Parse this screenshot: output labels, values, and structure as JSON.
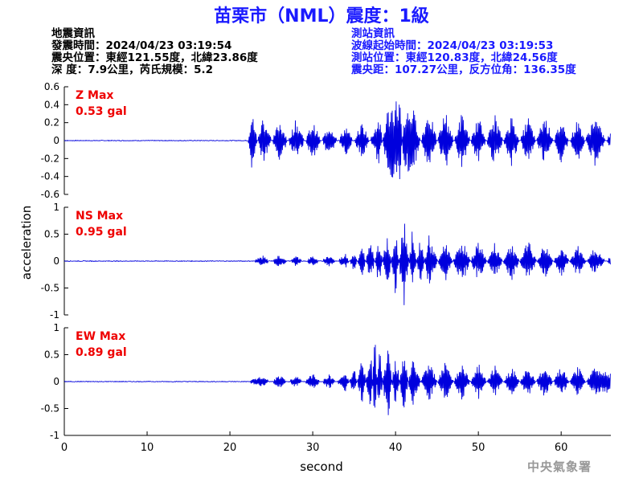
{
  "title": "苗栗市（NML）震度：1級",
  "quake_info": {
    "heading": "地震資訊",
    "origin_time": "發震時間：2024/04/23 03:19:54",
    "epicenter": "震央位置：東經121.55度，北緯23.86度",
    "depth_magnitude": "深  度：7.9公里，芮氏規模：5.2"
  },
  "station_info": {
    "heading": "測站資訊",
    "wave_start": "波線起始時間：2024/04/23 03:19:53",
    "location": "測站位置：東經120.83度，北緯24.56度",
    "distance": "震央距：107.27公里，反方位角：136.35度"
  },
  "agency": "中央氣象署",
  "colors": {
    "trace": "#0000dd",
    "title": "#1a1aff",
    "max_label": "#ee0000",
    "station_text": "#1a1aff"
  },
  "chart_data": {
    "type": "line",
    "xlabel": "second",
    "ylabel": "acceleration",
    "xlim": [
      0,
      66
    ],
    "x_ticks": [
      0,
      10,
      20,
      30,
      40,
      50,
      60
    ],
    "grid": false,
    "legend": "none",
    "panels": [
      {
        "component": "Z",
        "max_label": "Z Max",
        "max_value": "0.53 gal",
        "ylim": [
          -0.6,
          0.6
        ],
        "y_ticks": [
          0.6,
          0.4,
          0.2,
          0,
          -0.2,
          -0.4,
          -0.6
        ],
        "y_tick_labels": [
          "0.6",
          "0.4",
          "0.2",
          "0",
          "-0.2",
          "-0.4",
          "-0.6"
        ],
        "x": [
          0,
          20,
          22.2,
          22.6,
          24,
          26,
          28,
          30,
          32,
          34,
          36,
          38,
          39,
          40.5,
          41,
          42,
          44,
          46,
          48,
          50,
          52,
          54,
          56,
          58,
          60,
          62,
          64,
          66
        ],
        "y": [
          0,
          0,
          0,
          -0.35,
          0.3,
          -0.25,
          0.25,
          -0.22,
          0.2,
          -0.18,
          0.22,
          -0.28,
          0.35,
          0.53,
          -0.3,
          -0.42,
          0.38,
          -0.35,
          0.32,
          -0.28,
          0.3,
          -0.3,
          0.28,
          -0.3,
          0.25,
          -0.25,
          0.3,
          -0.12
        ]
      },
      {
        "component": "NS",
        "max_label": "NS Max",
        "max_value": "0.95 gal",
        "ylim": [
          -1,
          1
        ],
        "y_ticks": [
          1,
          0.5,
          0,
          -0.5,
          -1
        ],
        "y_tick_labels": [
          "1",
          "0.5",
          "0",
          "-0.5",
          "-1"
        ],
        "x": [
          0,
          22,
          24,
          26,
          28,
          30,
          32,
          34,
          35,
          36,
          37,
          38,
          39,
          40,
          41,
          42,
          43,
          44,
          46,
          48,
          50,
          52,
          54,
          56,
          58,
          60,
          62,
          64,
          66
        ],
        "y": [
          0,
          0.03,
          -0.1,
          0.12,
          -0.1,
          0.1,
          -0.12,
          0.15,
          -0.2,
          0.3,
          -0.45,
          0.5,
          -0.6,
          0.65,
          -0.95,
          0.55,
          -0.5,
          0.5,
          -0.4,
          0.45,
          -0.4,
          0.35,
          -0.38,
          0.4,
          -0.35,
          0.3,
          -0.3,
          0.25,
          -0.1
        ]
      },
      {
        "component": "EW",
        "max_label": "EW Max",
        "max_value": "0.89 gal",
        "ylim": [
          -1,
          1
        ],
        "y_ticks": [
          1,
          0.5,
          0,
          -0.5,
          -1
        ],
        "y_tick_labels": [
          "1",
          "0.5",
          "0",
          "-0.5",
          "-1"
        ],
        "x": [
          0,
          22,
          24,
          26,
          28,
          30,
          32,
          34,
          35,
          36,
          37,
          37.5,
          38,
          39,
          40,
          41,
          42,
          44,
          46,
          48,
          50,
          52,
          54,
          56,
          58,
          60,
          62,
          64,
          66
        ],
        "y": [
          0,
          0.02,
          0.1,
          -0.12,
          0.12,
          -0.15,
          0.15,
          -0.2,
          0.3,
          -0.5,
          0.7,
          -0.89,
          0.75,
          -0.85,
          0.6,
          -0.6,
          0.5,
          -0.45,
          0.4,
          -0.38,
          0.35,
          -0.32,
          0.3,
          -0.3,
          0.32,
          -0.3,
          0.3,
          -0.28,
          -0.2
        ]
      }
    ]
  }
}
